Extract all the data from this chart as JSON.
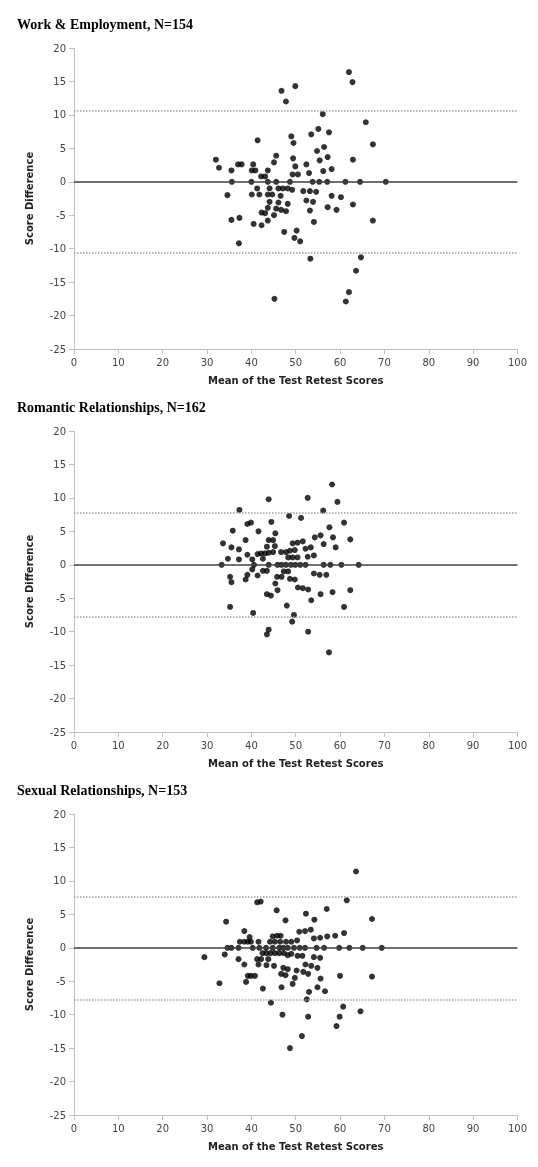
{
  "chart_data": [
    {
      "type": "scatter",
      "title": "Work & Employment, N=154",
      "xlabel": "Mean of the Test Retest Scores",
      "ylabel": "Score Difference",
      "xlim": [
        0,
        100
      ],
      "xticks": [
        0,
        10,
        20,
        30,
        40,
        50,
        60,
        70,
        80,
        90,
        100
      ],
      "ylim": [
        -25,
        20
      ],
      "yticks": [
        -25,
        -20,
        -15,
        -10,
        -5,
        0,
        5,
        10,
        15,
        20
      ],
      "grid": false,
      "marker": "circle",
      "color": "#000000",
      "x": [
        32.0,
        32.7,
        34.6,
        35.5,
        35.6,
        35.5,
        37.0,
        37.8,
        37.3,
        37.2,
        40.0,
        40.1,
        40.4,
        40.9,
        40.1,
        40.5,
        41.3,
        41.4,
        41.8,
        42.2,
        43.1,
        43.7,
        43.7,
        42.3,
        43.1,
        42.3,
        43.7,
        43.7,
        43.7,
        44.1,
        44.1,
        44.7,
        45.1,
        45.1,
        45.6,
        45.6,
        45.6,
        46.1,
        46.1,
        46.6,
        46.8,
        47.8,
        49.9,
        46.7,
        47.1,
        47.8,
        48.2,
        48.2,
        47.4,
        48.7,
        49.0,
        49.5,
        49.4,
        49.3,
        49.2,
        49.9,
        50.5,
        49.7,
        50.2,
        51.0,
        51.7,
        52.4,
        52.4,
        53.0,
        53.2,
        53.2,
        53.3,
        53.5,
        53.8,
        53.9,
        54.1,
        54.6,
        54.8,
        55.1,
        55.3,
        55.4,
        56.1,
        56.4,
        56.2,
        57.2,
        57.1,
        57.2,
        57.5,
        58.1,
        58.1,
        59.2,
        60.2,
        61.2,
        61.3,
        62.0,
        62.0,
        62.8,
        62.9,
        62.9,
        63.6,
        64.5,
        64.7,
        65.8,
        67.4,
        67.4,
        70.3,
        45.2
      ],
      "values": [
        3.3,
        2.1,
        -2.0,
        1.7,
        0,
        -5.7,
        2.6,
        2.6,
        -5.4,
        -9.2,
        0,
        1.7,
        2.6,
        1.7,
        -1.9,
        -6.3,
        -1.0,
        6.2,
        -1.9,
        0.8,
        0.8,
        1.7,
        0,
        -4.6,
        -4.7,
        -6.5,
        -5.8,
        -3.9,
        -1.9,
        -1.0,
        -3.0,
        -1.9,
        -5.0,
        2.9,
        3.9,
        0,
        -4.0,
        -1.0,
        -3.1,
        -2.1,
        13.6,
        12.0,
        14.3,
        -4.2,
        -1.0,
        -4.4,
        -1.0,
        -3.3,
        -7.5,
        0,
        6.8,
        5.8,
        3.5,
        1.1,
        -1.2,
        2.3,
        1.1,
        -8.4,
        -7.3,
        -8.9,
        -1.4,
        2.6,
        -2.8,
        1.3,
        -1.4,
        -4.3,
        -11.5,
        7.1,
        0,
        -3.0,
        -6.0,
        -1.5,
        4.6,
        7.9,
        0,
        3.2,
        10.1,
        5.2,
        1.6,
        3.7,
        0,
        -3.8,
        7.4,
        1.9,
        -2.1,
        -4.2,
        -2.3,
        0,
        -17.9,
        -16.5,
        16.4,
        14.9,
        3.3,
        -3.4,
        -13.3,
        0,
        -11.3,
        8.9,
        5.6,
        -5.8,
        0,
        -17.5
      ],
      "ref_lines": [
        {
          "axis": "y",
          "value": 0,
          "color": "#404040",
          "line_style": "solid"
        },
        {
          "axis": "y",
          "value": 10.6,
          "color": "#a0a0a0",
          "line_style": "dotted"
        },
        {
          "axis": "y",
          "value": -10.6,
          "color": "#a0a0a0",
          "line_style": "dotted"
        }
      ]
    },
    {
      "type": "scatter",
      "title": "Romantic Relationships, N=162",
      "xlabel": "Mean of the Test Retest Scores",
      "ylabel": "Score Difference",
      "xlim": [
        0,
        100
      ],
      "xticks": [
        0,
        10,
        20,
        30,
        40,
        50,
        60,
        70,
        80,
        90,
        100
      ],
      "ylim": [
        -25,
        20
      ],
      "yticks": [
        -25,
        -20,
        -15,
        -10,
        -5,
        0,
        5,
        10,
        15,
        20
      ],
      "grid": false,
      "marker": "circle",
      "color": "#000000",
      "x": [
        33.3,
        33.6,
        34.7,
        35.2,
        35.2,
        35.5,
        35.5,
        35.8,
        37.2,
        37.2,
        37.3,
        38.7,
        38.7,
        39.1,
        39.1,
        39.1,
        39.9,
        40.2,
        40.2,
        40.4,
        40.6,
        41.4,
        41.4,
        41.6,
        42.2,
        42.6,
        42.6,
        43.1,
        43.5,
        43.5,
        43.5,
        43.5,
        43.9,
        43.9,
        43.9,
        43.9,
        43.9,
        44.4,
        44.5,
        44.9,
        44.9,
        45.3,
        45.4,
        45.4,
        45.8,
        45.9,
        45.9,
        46.7,
        46.8,
        46.8,
        47.3,
        47.8,
        47.8,
        48.0,
        48.3,
        48.3,
        48.5,
        48.7,
        48.7,
        48.9,
        49.2,
        49.3,
        49.3,
        49.6,
        49.8,
        49.8,
        49.9,
        50.4,
        50.4,
        50.5,
        51.0,
        51.2,
        51.6,
        51.6,
        52.2,
        52.2,
        52.7,
        52.7,
        52.8,
        52.8,
        53.4,
        53.5,
        54.1,
        54.1,
        54.3,
        55.4,
        55.6,
        55.6,
        56.2,
        56.3,
        56.3,
        56.9,
        57.6,
        57.5,
        57.8,
        58.2,
        58.4,
        58.3,
        59.0,
        59.4,
        60.3,
        60.9,
        60.9,
        62.3,
        62.3,
        64.2
      ],
      "values": [
        0,
        3.2,
        0.9,
        -1.8,
        -6.3,
        2.6,
        -2.6,
        5.1,
        2.3,
        0.8,
        8.2,
        3.7,
        -2.2,
        6.1,
        1.5,
        -1.5,
        6.3,
        0.8,
        -0.7,
        -7.2,
        0,
        1.6,
        -1.6,
        5.0,
        1.7,
        0.9,
        -0.9,
        1.7,
        2.7,
        -0.9,
        -4.4,
        -10.4,
        9.8,
        3.7,
        1.8,
        0,
        -9.7,
        -4.6,
        6.4,
        3.7,
        1.9,
        2.8,
        4.7,
        -2.8,
        -1.8,
        0,
        -3.8,
        1.9,
        0,
        -1.8,
        -1.0,
        1.9,
        0,
        -6.1,
        -1.0,
        1.1,
        7.3,
        2.1,
        -2.1,
        0,
        -8.5,
        3.2,
        1.1,
        -7.5,
        2.2,
        -2.2,
        0,
        3.3,
        1.1,
        -3.4,
        0,
        7.0,
        3.5,
        -3.5,
        0,
        2.4,
        10.0,
        1.2,
        -10.0,
        -3.7,
        2.6,
        -5.3,
        1.4,
        -1.3,
        4.1,
        -1.5,
        -4.4,
        4.4,
        8.1,
        3.1,
        0,
        -1.5,
        5.6,
        -13.1,
        0,
        12.0,
        4.1,
        -4.1,
        2.6,
        9.4,
        0,
        6.3,
        -6.3,
        3.8,
        -3.8,
        0
      ],
      "ref_lines": [
        {
          "axis": "y",
          "value": 0,
          "color": "#404040",
          "line_style": "solid"
        },
        {
          "axis": "y",
          "value": 7.8,
          "color": "#a0a0a0",
          "line_style": "dotted"
        },
        {
          "axis": "y",
          "value": -7.8,
          "color": "#a0a0a0",
          "line_style": "dotted"
        }
      ]
    },
    {
      "type": "scatter",
      "title": "Sexual Relationships, N=153",
      "xlabel": "Mean of the Test Retest Scores",
      "ylabel": "Score Difference",
      "xlim": [
        0,
        100
      ],
      "xticks": [
        0,
        10,
        20,
        30,
        40,
        50,
        60,
        70,
        80,
        90,
        100
      ],
      "ylim": [
        -25,
        20
      ],
      "yticks": [
        -25,
        -20,
        -15,
        -10,
        -5,
        0,
        5,
        10,
        15,
        20
      ],
      "grid": false,
      "marker": "circle",
      "color": "#000000",
      "x": [
        29.4,
        32.8,
        34.0,
        34.3,
        34.6,
        35.5,
        37.1,
        37.1,
        37.4,
        38.4,
        38.4,
        38.4,
        38.8,
        39.2,
        39.2,
        39.6,
        39.9,
        39.9,
        40.3,
        40.8,
        41.3,
        42.1,
        41.3,
        41.6,
        41.6,
        41.8,
        42.2,
        42.5,
        42.6,
        43.3,
        43.4,
        43.4,
        43.8,
        44.2,
        44.3,
        44.4,
        44.8,
        44.8,
        45.1,
        45.3,
        45.3,
        45.7,
        45.8,
        46.3,
        46.3,
        46.5,
        46.6,
        46.7,
        46.8,
        47.0,
        47.2,
        47.3,
        47.2,
        47.7,
        47.7,
        47.8,
        48.2,
        48.2,
        48.2,
        48.7,
        49.0,
        49.0,
        49.3,
        49.6,
        49.8,
        50.3,
        50.4,
        50.2,
        50.8,
        50.9,
        51.4,
        51.5,
        51.7,
        52.1,
        52.1,
        52.2,
        52.3,
        52.5,
        52.8,
        52.8,
        53.0,
        53.4,
        53.5,
        54.1,
        54.1,
        54.2,
        54.7,
        54.9,
        54.9,
        55.5,
        55.5,
        55.6,
        56.4,
        56.6,
        57.1,
        57.0,
        58.9,
        59.2,
        59.8,
        59.9,
        60.0,
        60.7,
        60.9,
        61.5,
        62.1,
        63.6,
        64.6,
        65.1,
        67.2,
        67.2,
        69.4
      ],
      "values": [
        -1.4,
        -5.3,
        -1.0,
        3.9,
        0,
        0,
        0,
        -1.7,
        0.9,
        2.5,
        -2.5,
        0.9,
        -5.1,
        0.9,
        -4.2,
        1.6,
        0.9,
        -4.2,
        0,
        -4.2,
        6.8,
        6.9,
        -1.7,
        0.9,
        -2.5,
        0,
        -1.7,
        -0.8,
        -6.1,
        0,
        -2.6,
        -0.8,
        -1.7,
        0.9,
        -0.8,
        -8.2,
        1.7,
        0,
        -2.7,
        0.9,
        -0.8,
        5.6,
        1.8,
        0,
        -0.8,
        0.9,
        1.8,
        -3.9,
        -5.9,
        -10.0,
        0,
        -0.8,
        -3.0,
        4.1,
        -4.1,
        0.9,
        -1.1,
        -3.2,
        0,
        -15.0,
        0.9,
        -0.9,
        -5.4,
        0,
        -4.5,
        1.1,
        -1.2,
        -3.4,
        2.4,
        0,
        -13.2,
        -1.2,
        -3.6,
        0,
        2.5,
        -2.5,
        5.1,
        -7.7,
        -3.9,
        -10.3,
        -6.6,
        2.7,
        -2.7,
        1.4,
        -1.4,
        4.2,
        0,
        -3.0,
        -5.9,
        1.5,
        -1.5,
        -4.6,
        0,
        -6.5,
        1.7,
        5.8,
        1.8,
        -11.7,
        0,
        -10.3,
        -4.2,
        -8.8,
        2.2,
        7.1,
        0,
        11.4,
        -9.5,
        0,
        4.3,
        -4.3,
        0
      ],
      "ref_lines": [
        {
          "axis": "y",
          "value": 0,
          "color": "#404040",
          "line_style": "solid"
        },
        {
          "axis": "y",
          "value": 7.7,
          "color": "#a0a0a0",
          "line_style": "dotted"
        },
        {
          "axis": "y",
          "value": -7.7,
          "color": "#a0a0a0",
          "line_style": "dotted"
        }
      ]
    }
  ]
}
